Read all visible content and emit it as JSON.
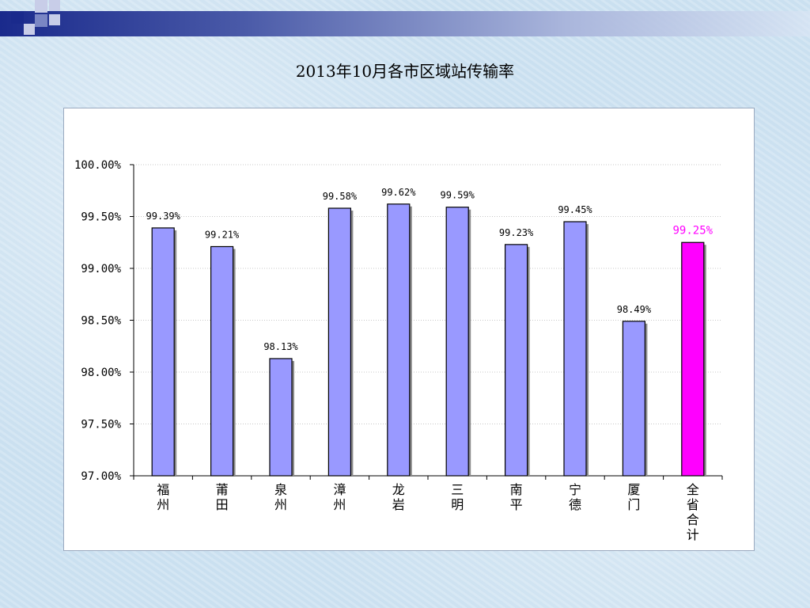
{
  "page": {
    "title": "2013年10月各市区域站传输率"
  },
  "colors": {
    "bar": "#9999ff",
    "highlight_bar": "#ff00ff",
    "highlight_label": "#ff00ff",
    "grid": "#c8c8c8"
  },
  "chart_data": {
    "type": "bar",
    "title": "",
    "xlabel": "",
    "ylabel": "",
    "categories": [
      "福州",
      "莆田",
      "泉州",
      "漳州",
      "龙岩",
      "三明",
      "南平",
      "宁德",
      "厦门",
      "全省合计"
    ],
    "values": [
      99.39,
      99.21,
      98.13,
      99.58,
      99.62,
      99.59,
      99.23,
      99.45,
      98.49,
      99.25
    ],
    "value_labels": [
      "99.39%",
      "99.21%",
      "98.13%",
      "99.58%",
      "99.62%",
      "99.59%",
      "99.23%",
      "99.45%",
      "98.49%",
      "99.25%"
    ],
    "highlight_index": 9,
    "ylim": [
      97.0,
      100.0
    ],
    "yticks": [
      97.0,
      97.5,
      98.0,
      98.5,
      99.0,
      99.5,
      100.0
    ],
    "ytick_labels": [
      "97.00%",
      "97.50%",
      "98.00%",
      "98.50%",
      "99.00%",
      "99.50%",
      "100.00%"
    ],
    "grid": true,
    "legend": "none"
  }
}
